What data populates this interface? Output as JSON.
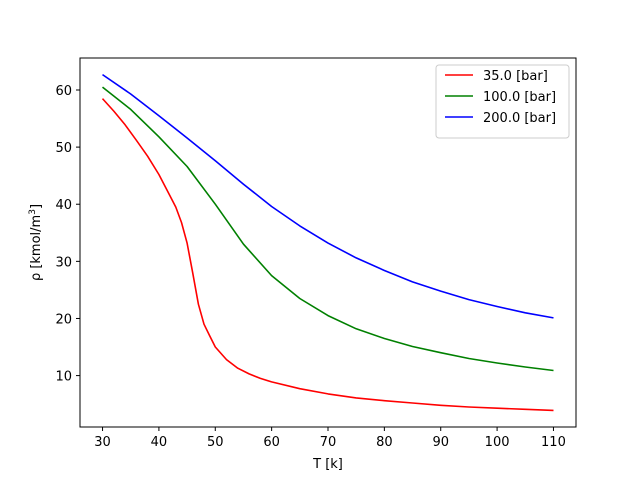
{
  "chart_data": {
    "type": "line",
    "title": "",
    "xlabel": "T [k]",
    "ylabel_main": "ρ [kmol/m",
    "ylabel_sup": "3",
    "ylabel_tail": "]",
    "xlim": [
      26,
      114
    ],
    "ylim": [
      1.0,
      65.6
    ],
    "xticks": [
      30,
      40,
      50,
      60,
      70,
      80,
      90,
      100,
      110
    ],
    "yticks": [
      10,
      20,
      30,
      40,
      50,
      60
    ],
    "grid": false,
    "legend_position": "upper right",
    "series": [
      {
        "name": "35.0 [bar]",
        "color": "#ff0000",
        "x": [
          30,
          32,
          34,
          36,
          38,
          40,
          42,
          43,
          44,
          45,
          46,
          47,
          48,
          49,
          50,
          52,
          54,
          56,
          58,
          60,
          65,
          70,
          75,
          80,
          85,
          90,
          95,
          100,
          105,
          110
        ],
        "y": [
          58.5,
          56.3,
          53.9,
          51.2,
          48.4,
          45.2,
          41.4,
          39.5,
          36.8,
          33.2,
          28.0,
          22.5,
          19.0,
          17.0,
          15.0,
          12.8,
          11.3,
          10.3,
          9.5,
          8.9,
          7.7,
          6.8,
          6.1,
          5.6,
          5.2,
          4.8,
          4.5,
          4.3,
          4.1,
          3.9
        ]
      },
      {
        "name": "100.0 [bar]",
        "color": "#008000",
        "x": [
          30,
          35,
          40,
          45,
          50,
          55,
          60,
          65,
          70,
          75,
          80,
          85,
          90,
          95,
          100,
          105,
          110
        ],
        "y": [
          60.5,
          56.6,
          51.8,
          46.6,
          40.0,
          33.0,
          27.5,
          23.5,
          20.5,
          18.2,
          16.5,
          15.1,
          14.0,
          13.0,
          12.2,
          11.5,
          10.9
        ]
      },
      {
        "name": "200.0 [bar]",
        "color": "#0000ff",
        "x": [
          30,
          35,
          40,
          45,
          50,
          55,
          60,
          65,
          70,
          75,
          80,
          85,
          90,
          95,
          100,
          105,
          110
        ],
        "y": [
          62.7,
          59.3,
          55.5,
          51.6,
          47.6,
          43.5,
          39.6,
          36.2,
          33.2,
          30.6,
          28.4,
          26.4,
          24.8,
          23.3,
          22.1,
          21.0,
          20.1
        ]
      }
    ]
  }
}
